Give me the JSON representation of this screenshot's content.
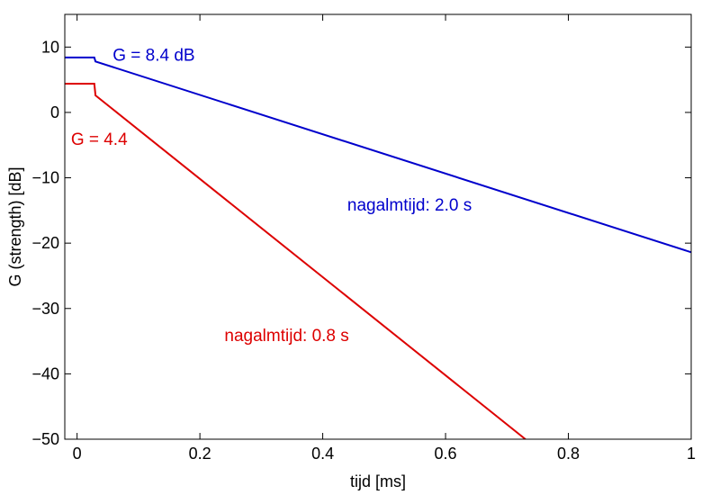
{
  "chart_data": {
    "type": "line",
    "xlabel": "tijd  [ms]",
    "ylabel": "G (strength) [dB]",
    "xlim": [
      -0.02,
      1.0
    ],
    "ylim": [
      -50,
      15
    ],
    "xticks": [
      0,
      0.2,
      0.4,
      0.6,
      0.8,
      1
    ],
    "xtick_labels": [
      "0",
      "0.2",
      "0.4",
      "0.6",
      "0.8",
      "1"
    ],
    "yticks": [
      10,
      0,
      -10,
      -20,
      -30,
      -40,
      -50
    ],
    "ytick_labels": [
      "10",
      "0",
      "−10",
      "−20",
      "−30",
      "−40",
      "−50"
    ],
    "grid": false,
    "series": [
      {
        "color": "#0000cc",
        "x": [
          -0.02,
          0.028,
          0.03,
          1.0
        ],
        "y": [
          8.4,
          8.4,
          7.8,
          -21.4
        ]
      },
      {
        "color": "#dd0000",
        "x": [
          -0.02,
          0.028,
          0.03,
          0.73
        ],
        "y": [
          4.4,
          4.4,
          2.6,
          -50
        ]
      }
    ],
    "annotations": [
      {
        "id": "blue-g",
        "text": "G = 8.4 dB",
        "x": 0.058,
        "y": 7.9,
        "color": "#0000cc"
      },
      {
        "id": "red-g",
        "text": "G = 4.4",
        "x": -0.01,
        "y": -5.0,
        "color": "#dd0000"
      },
      {
        "id": "blue-rt",
        "text": "nagalmtijd: 2.0 s",
        "x": 0.44,
        "y": -15.0,
        "color": "#0000cc"
      },
      {
        "id": "red-rt",
        "text": "nagalmtijd: 0.8 s",
        "x": 0.24,
        "y": -35.0,
        "color": "#dd0000"
      }
    ]
  }
}
